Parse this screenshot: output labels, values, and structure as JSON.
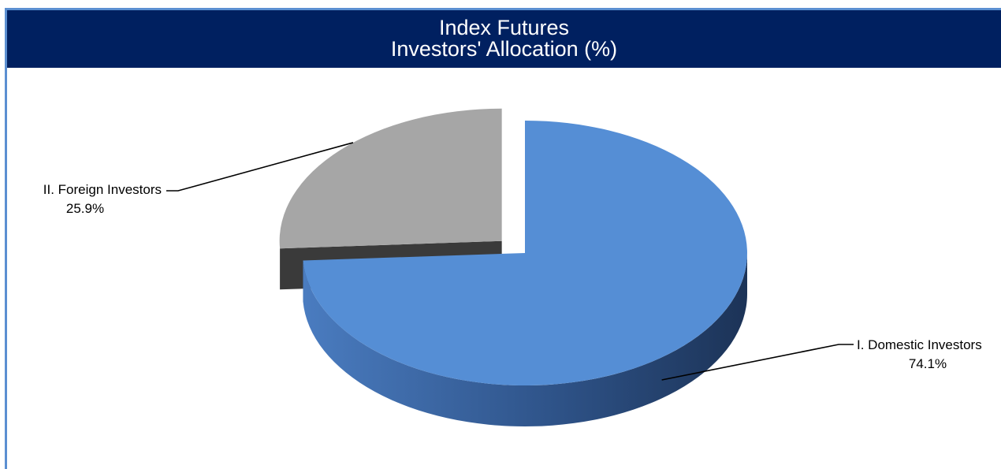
{
  "colors": {
    "title_bg": "#002060",
    "frame_accent": "#5b8fd1",
    "domestic": "#558ed5",
    "foreign": "#a6a6a6"
  },
  "chart_data": {
    "type": "pie",
    "title": [
      "Index Futures",
      "Investors' Allocation (%)"
    ],
    "style": "3d-exploded",
    "slices": [
      {
        "name": "I. Domestic Investors",
        "value": 74.1,
        "label": "74.1%",
        "color": "#558ed5"
      },
      {
        "name": "II. Foreign Investors",
        "value": 25.9,
        "label": "25.9%",
        "color": "#a6a6a6"
      }
    ]
  }
}
